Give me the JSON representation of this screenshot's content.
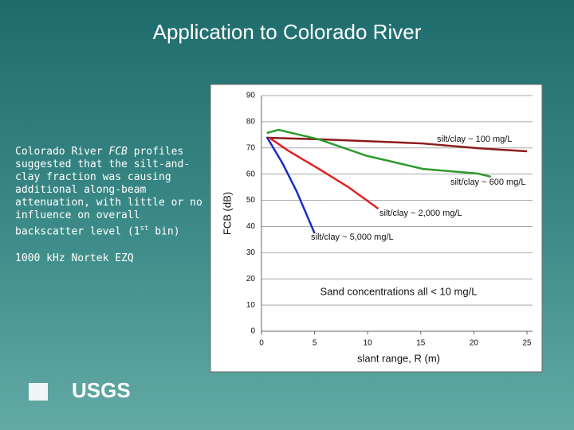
{
  "slide": {
    "title": "Application to Colorado River",
    "body": [
      "Colorado River ",
      "FCB",
      " profiles suggested that the silt-and-clay fraction was causing additional along-beam attenuation, with little or no influence on overall backscatter level (1",
      "st",
      " bin)"
    ],
    "note": "1000 kHz Nortek EZQ",
    "logo": "USGS"
  },
  "chart_data": {
    "type": "line",
    "y_label": "FCB (dB)",
    "x_label": "slant range, R (m)",
    "annotation": "Sand concentrations all < 10 mg/L",
    "xlim": [
      0,
      25
    ],
    "ylim": [
      0,
      90
    ],
    "xticks": [
      0,
      5,
      10,
      15,
      20,
      25
    ],
    "yticks": [
      0,
      10,
      20,
      30,
      40,
      50,
      60,
      70,
      80,
      90
    ],
    "grid": true,
    "series": [
      {
        "name": "silt/clay ~ 100 mg/L",
        "color": "#8b1a1a",
        "x": [
          0.5,
          5.4,
          9.9,
          15.2,
          20.4,
          25
        ],
        "values": [
          73.9,
          73.3,
          72.6,
          71.7,
          69.9,
          68.7
        ]
      },
      {
        "name": "silt/clay ~ 600 mg/L",
        "color": "#2e9a2e",
        "x": [
          0.5,
          1.6,
          5.4,
          9.9,
          15.2,
          20.4,
          21.6
        ],
        "values": [
          75.7,
          76.9,
          73.3,
          67,
          62,
          60.2,
          59
        ]
      },
      {
        "name": "silt/clay ~ 2,000 mg/L",
        "color": "#e02020",
        "x": [
          0.7,
          2.5,
          5.4,
          8.2,
          11
        ],
        "values": [
          74,
          69,
          62,
          55,
          46.8
        ]
      },
      {
        "name": "silt/clay ~ 5,000 mg/L",
        "color": "#1a2fc0",
        "x": [
          0.5,
          2,
          3.3,
          4.2,
          5
        ],
        "values": [
          74.2,
          64,
          53.5,
          45,
          37.4
        ]
      }
    ]
  }
}
